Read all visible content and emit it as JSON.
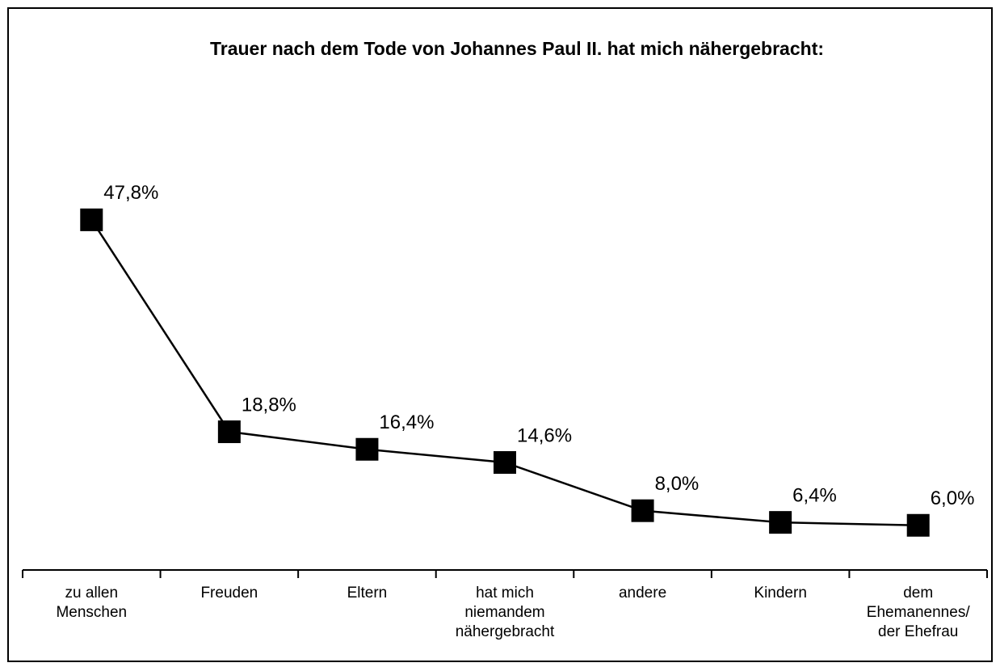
{
  "chart_data": {
    "type": "line",
    "title": "Trauer nach dem Tode von Johannes Paul II. hat mich nähergebracht:",
    "categories": [
      "zu allen\nMenschen",
      "Freuden",
      "Eltern",
      "hat mich\nniemandem\nnähergebracht",
      "andere",
      "Kindern",
      "dem\nEhemanennes/\nder Ehefrau"
    ],
    "values": [
      47.8,
      18.8,
      16.4,
      14.6,
      8.0,
      6.4,
      6.0
    ],
    "value_labels": [
      "47,8%",
      "18,8%",
      "16,4%",
      "14,6%",
      "8,0%",
      "6,4%",
      "6,0%"
    ],
    "color": "#000000",
    "ylim": [
      0,
      50
    ]
  }
}
